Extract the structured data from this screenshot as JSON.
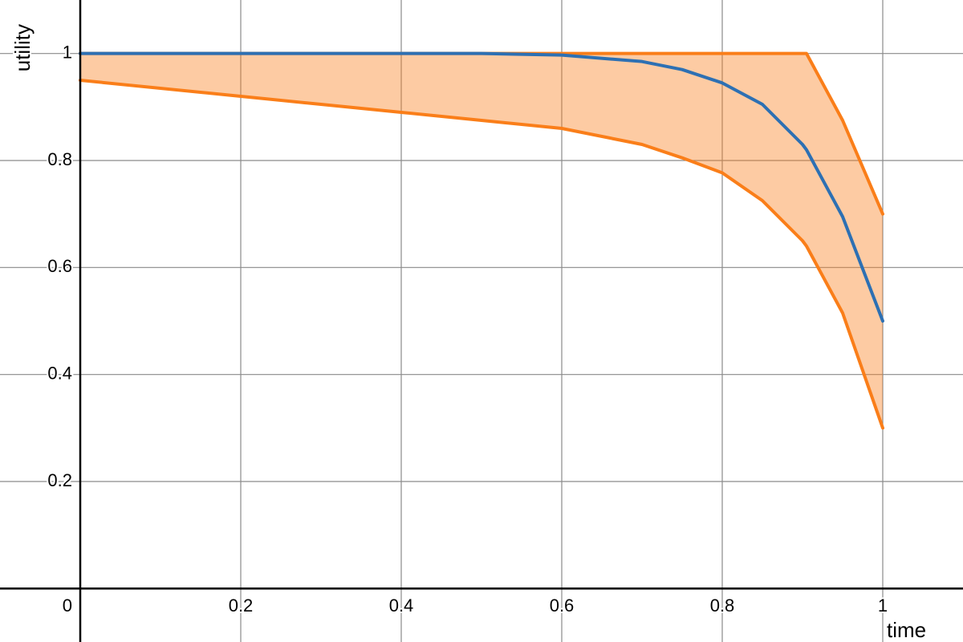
{
  "chart_data": {
    "type": "line",
    "xlabel": "time",
    "ylabel": "utility",
    "x": [
      0,
      0.2,
      0.4,
      0.5,
      0.6,
      0.7,
      0.75,
      0.8,
      0.85,
      0.9,
      0.905,
      0.95,
      1
    ],
    "series": [
      {
        "color": "#2d70b3",
        "values": [
          1,
          1,
          1,
          1,
          0.997,
          0.985,
          0.97,
          0.945,
          0.905,
          0.83,
          0.82,
          0.695,
          0.5
        ]
      },
      {
        "color": "#fa7e19",
        "values": [
          1,
          1,
          1,
          1,
          1,
          1,
          1,
          1,
          1,
          1,
          1,
          0.875,
          0.7
        ]
      },
      {
        "color": "#fa7e19",
        "values": [
          0.95,
          0.92,
          0.89,
          0.875,
          0.86,
          0.83,
          0.805,
          0.777,
          0.725,
          0.65,
          0.64,
          0.515,
          0.3
        ]
      }
    ],
    "fill_between": {
      "color": "#fa7e19",
      "opacity": 0.4
    },
    "xlim": [
      -0.1,
      1.1
    ],
    "ylim": [
      -0.1,
      1.1
    ],
    "xticks": [
      0,
      0.2,
      0.4,
      0.6,
      0.8,
      1
    ],
    "yticks": [
      0.2,
      0.4,
      0.6,
      0.8,
      1
    ],
    "grid": true
  }
}
